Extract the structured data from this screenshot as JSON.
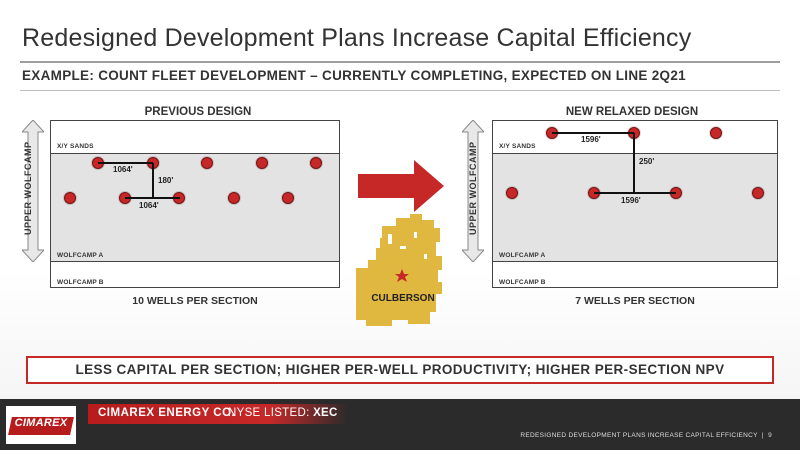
{
  "slide": {
    "title": "Redesigned Development Plans Increase Capital Efficiency",
    "subtitle": "EXAMPLE: COUNT FLEET DEVELOPMENT – CURRENTLY COMPLETING, EXPECTED ON LINE 2Q21"
  },
  "previous_design": {
    "title": "PREVIOUS DESIGN",
    "zone_label": "UPPER WOLFCAMP",
    "layer_labels": {
      "top": "X/Y SANDS",
      "middle": "WOLFCAMP A",
      "bottom": "WOLFCAMP B"
    },
    "measurements": {
      "upper_spacing": "1064'",
      "vertical": "180'",
      "lower_spacing": "1064'"
    },
    "caption": "10 WELLS PER SECTION",
    "well_count": 10
  },
  "new_design": {
    "title": "NEW RELAXED DESIGN",
    "zone_label": "UPPER WOLFCAMP",
    "layer_labels": {
      "top": "X/Y SANDS",
      "middle": "WOLFCAMP A",
      "bottom": "WOLFCAMP B"
    },
    "measurements": {
      "upper_spacing": "1596'",
      "vertical": "250'",
      "lower_spacing": "1596'"
    },
    "caption": "7 WELLS PER SECTION",
    "well_count": 7
  },
  "map": {
    "label": "CULBERSON"
  },
  "banner": {
    "text": "LESS CAPITAL PER SECTION; HIGHER PER-WELL PRODUCTIVITY; HIGHER PER-SECTION NPV"
  },
  "footer": {
    "logo_text": "CIMAREX",
    "company": "CIMAREX ENERGY CO.",
    "nyse_prefix": "NYSE LISTED:",
    "ticker": "XEC",
    "slide_label": "REDESIGNED DEVELOPMENT PLANS INCREASE CAPITAL EFFICIENCY",
    "page_number": "9"
  },
  "colors": {
    "accent": "#c62828",
    "band": "#e3e3e3",
    "footer": "#2b2b2b",
    "map": "#e0b73f"
  }
}
